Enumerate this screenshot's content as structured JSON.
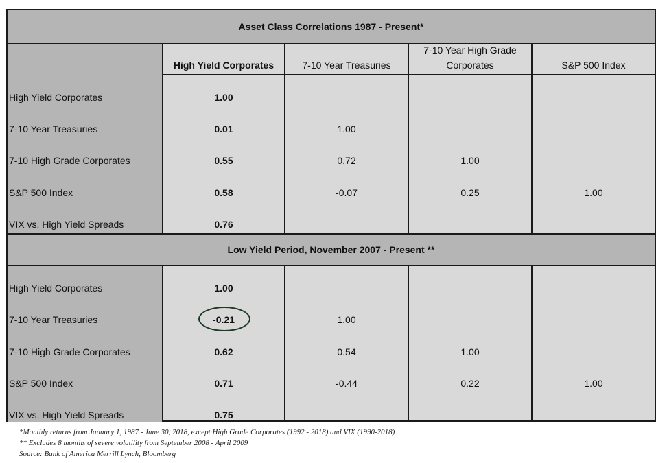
{
  "table": {
    "title": "Asset Class Correlations 1987 - Present*",
    "columns": [
      "High Yield Corporates",
      "7-10 Year Treasuries",
      "7-10 Year High Grade Corporates",
      "S&P 500 Index"
    ],
    "section1": {
      "rows": [
        {
          "label": "High Yield Corporates",
          "values": [
            "1.00",
            "",
            "",
            ""
          ]
        },
        {
          "label": "7-10 Year Treasuries",
          "values": [
            "0.01",
            "1.00",
            "",
            ""
          ]
        },
        {
          "label": "7-10 High Grade Corporates",
          "values": [
            "0.55",
            "0.72",
            "1.00",
            ""
          ]
        },
        {
          "label": "S&P 500 Index",
          "values": [
            "0.58",
            "-0.07",
            "0.25",
            "1.00"
          ]
        },
        {
          "label": "VIX vs. High Yield Spreads",
          "values": [
            "0.76",
            "",
            "",
            ""
          ]
        }
      ]
    },
    "section2": {
      "title": "Low Yield Period, November 2007 - Present **",
      "rows": [
        {
          "label": "High Yield Corporates",
          "values": [
            "1.00",
            "",
            "",
            ""
          ]
        },
        {
          "label": "7-10 Year Treasuries",
          "values": [
            "-0.21",
            "1.00",
            "",
            ""
          ]
        },
        {
          "label": "7-10 High Grade Corporates",
          "values": [
            "0.62",
            "0.54",
            "1.00",
            ""
          ]
        },
        {
          "label": "S&P 500 Index",
          "values": [
            "0.71",
            "-0.44",
            "0.22",
            "1.00"
          ]
        },
        {
          "label": "VIX vs. High Yield Spreads",
          "values": [
            "0.75",
            "",
            "",
            ""
          ]
        }
      ]
    }
  },
  "footnotes": [
    "*Monthly returns from January 1, 1987 -  June 30, 2018, except High Grade Corporates (1992 - 2018) and VIX (1990-2018)",
    "** Excludes 8 months of severe volatility from September 2008 - April 2009",
    "Source: Bank of America Merrill Lynch, Bloomberg"
  ],
  "colors": {
    "header_band": "#b5b5b5",
    "cell_bg": "#d9d9d9",
    "border": "#1a1a1a",
    "highlight_circle": "#1e3a24"
  }
}
